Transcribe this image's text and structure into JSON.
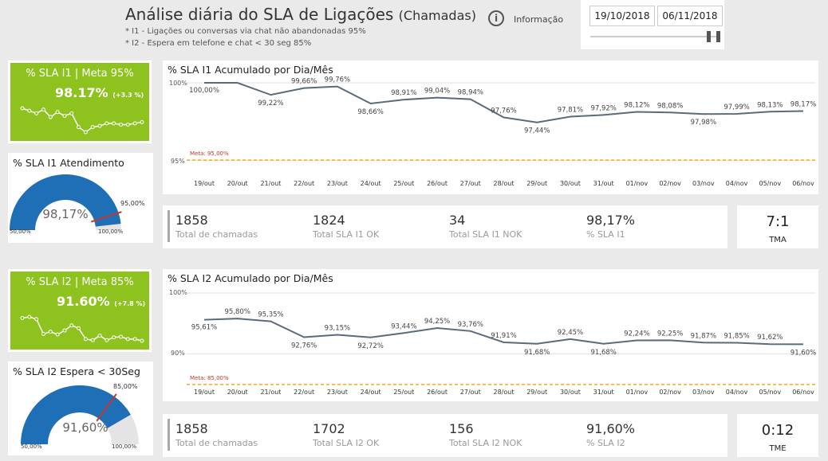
{
  "header": {
    "title": "Análise diária do SLA de Ligações",
    "title_suffix": "(Chamadas)",
    "note1": "* I1 - Ligações ou conversas via chat não abandonadas 95%",
    "note2": "* I2 - Espera em telefone e chat  < 30 seg 85%",
    "info_label": "Informação",
    "info_icon": "info-icon",
    "date_start": "19/10/2018",
    "date_end": "06/11/2018"
  },
  "colors": {
    "green": "#8dc21f",
    "blue": "#1f6fb7",
    "line": "#5a6b7b",
    "meta": "#f5a623",
    "needle": "#c0392b"
  },
  "section1": {
    "kpi_title": "% SLA I1 | Meta 95%",
    "kpi_value": "98.17%",
    "kpi_delta": "(+3.3 %)",
    "spark": [
      99.3,
      99.1,
      98.9,
      99.2,
      98.6,
      99.0,
      98.7,
      98.9,
      97.8,
      97.4,
      97.8,
      97.9,
      98.1,
      98.1,
      98.0,
      98.0,
      98.1,
      98.2
    ],
    "gauge_title": "% SLA I1 Atendimento",
    "gauge_value": "98,17%",
    "gauge_target": "95,00%",
    "gauge_min": "50,00%",
    "gauge_max": "100,00%",
    "gauge_val_num": 98.17,
    "gauge_target_num": 95,
    "chart_title": "% SLA I1 Acumulado por Dia/Mês",
    "meta_label": "Meta: 95,00%",
    "tick_hi": "100%",
    "tick_lo": "95%",
    "stats": [
      {
        "value": "1858",
        "label": "Total de chamadas"
      },
      {
        "value": "1824",
        "label": "Total SLA I1 OK"
      },
      {
        "value": "34",
        "label": "Total SLA I1 NOK"
      },
      {
        "value": "98,17%",
        "label": "% SLA I1"
      }
    ],
    "side_value": "7:1",
    "side_label": "TMA"
  },
  "section2": {
    "kpi_title": "% SLA I2 | Meta 85%",
    "kpi_value": "91.60%",
    "kpi_delta": "(+7.8 %)",
    "spark": [
      95.6,
      95.8,
      95.4,
      92.8,
      93.2,
      92.7,
      93.4,
      94.3,
      93.8,
      91.9,
      91.7,
      92.5,
      91.7,
      92.2,
      92.3,
      91.9,
      91.9,
      91.6
    ],
    "gauge_title": "% SLA I2 Espera < 30Seg",
    "gauge_value": "91,60%",
    "gauge_target": "85,00%",
    "gauge_min": "50,00%",
    "gauge_max": "100,00%",
    "gauge_val_num": 91.6,
    "gauge_target_num": 85,
    "chart_title": "% SLA I2 Acumulado por Dia/Mês",
    "meta_label": "Meta: 85,00%",
    "tick_hi": "100%",
    "tick_lo": "90%",
    "stats": [
      {
        "value": "1858",
        "label": "Total de chamadas"
      },
      {
        "value": "1702",
        "label": "Total SLA I2 OK"
      },
      {
        "value": "156",
        "label": "Total SLA I2 NOK"
      },
      {
        "value": "91,60%",
        "label": "% SLA I2"
      }
    ],
    "side_value": "0:12",
    "side_label": "TME"
  },
  "chart_data": [
    {
      "type": "line",
      "title": "% SLA I1 Acumulado por Dia/Mês",
      "categories": [
        "19/out",
        "20/out",
        "21/out",
        "22/out",
        "23/out",
        "24/out",
        "25/out",
        "26/out",
        "27/out",
        "28/out",
        "29/out",
        "30/out",
        "31/out",
        "01/nov",
        "02/nov",
        "03/nov",
        "04/nov",
        "05/nov",
        "06/nov"
      ],
      "values": [
        100.0,
        100.0,
        99.22,
        99.66,
        99.76,
        98.66,
        98.91,
        99.04,
        98.94,
        97.76,
        97.44,
        97.81,
        97.92,
        98.12,
        98.08,
        97.98,
        97.99,
        98.13,
        98.17
      ],
      "labels": [
        "100,00%",
        "",
        "99,22%",
        "99,66%",
        "99,76%",
        "98,66%",
        "98,91%",
        "99,04%",
        "98,94%",
        "97,76%",
        "97,44%",
        "97,81%",
        "97,92%",
        "98,12%",
        "98,08%",
        "97,98%",
        "97,99%",
        "98,13%",
        "98,17%"
      ],
      "meta": 95,
      "ylim": [
        94.85,
        100
      ],
      "ticks": [
        100,
        95
      ]
    },
    {
      "type": "line",
      "title": "% SLA I2 Acumulado por Dia/Mês",
      "categories": [
        "19/out",
        "20/out",
        "21/out",
        "22/out",
        "23/out",
        "24/out",
        "25/out",
        "26/out",
        "27/out",
        "28/out",
        "29/out",
        "30/out",
        "31/out",
        "01/nov",
        "02/nov",
        "03/nov",
        "04/nov",
        "05/nov",
        "06/nov"
      ],
      "values": [
        95.61,
        95.8,
        95.35,
        92.76,
        93.15,
        92.72,
        93.44,
        94.25,
        93.76,
        91.91,
        91.68,
        92.45,
        91.68,
        92.24,
        92.25,
        91.87,
        91.85,
        91.62,
        91.6
      ],
      "labels": [
        "95,61%",
        "95,80%",
        "95,35%",
        "92,76%",
        "93,15%",
        "92,72%",
        "93,44%",
        "94,25%",
        "93,76%",
        "91,91%",
        "91,68%",
        "92,45%",
        "91,68%",
        "92,24%",
        "92,25%",
        "91,87%",
        "91,85%",
        "91,62%",
        "91,60%"
      ],
      "meta": 85,
      "ylim": [
        84.6,
        100
      ],
      "ticks": [
        100,
        90
      ]
    }
  ]
}
